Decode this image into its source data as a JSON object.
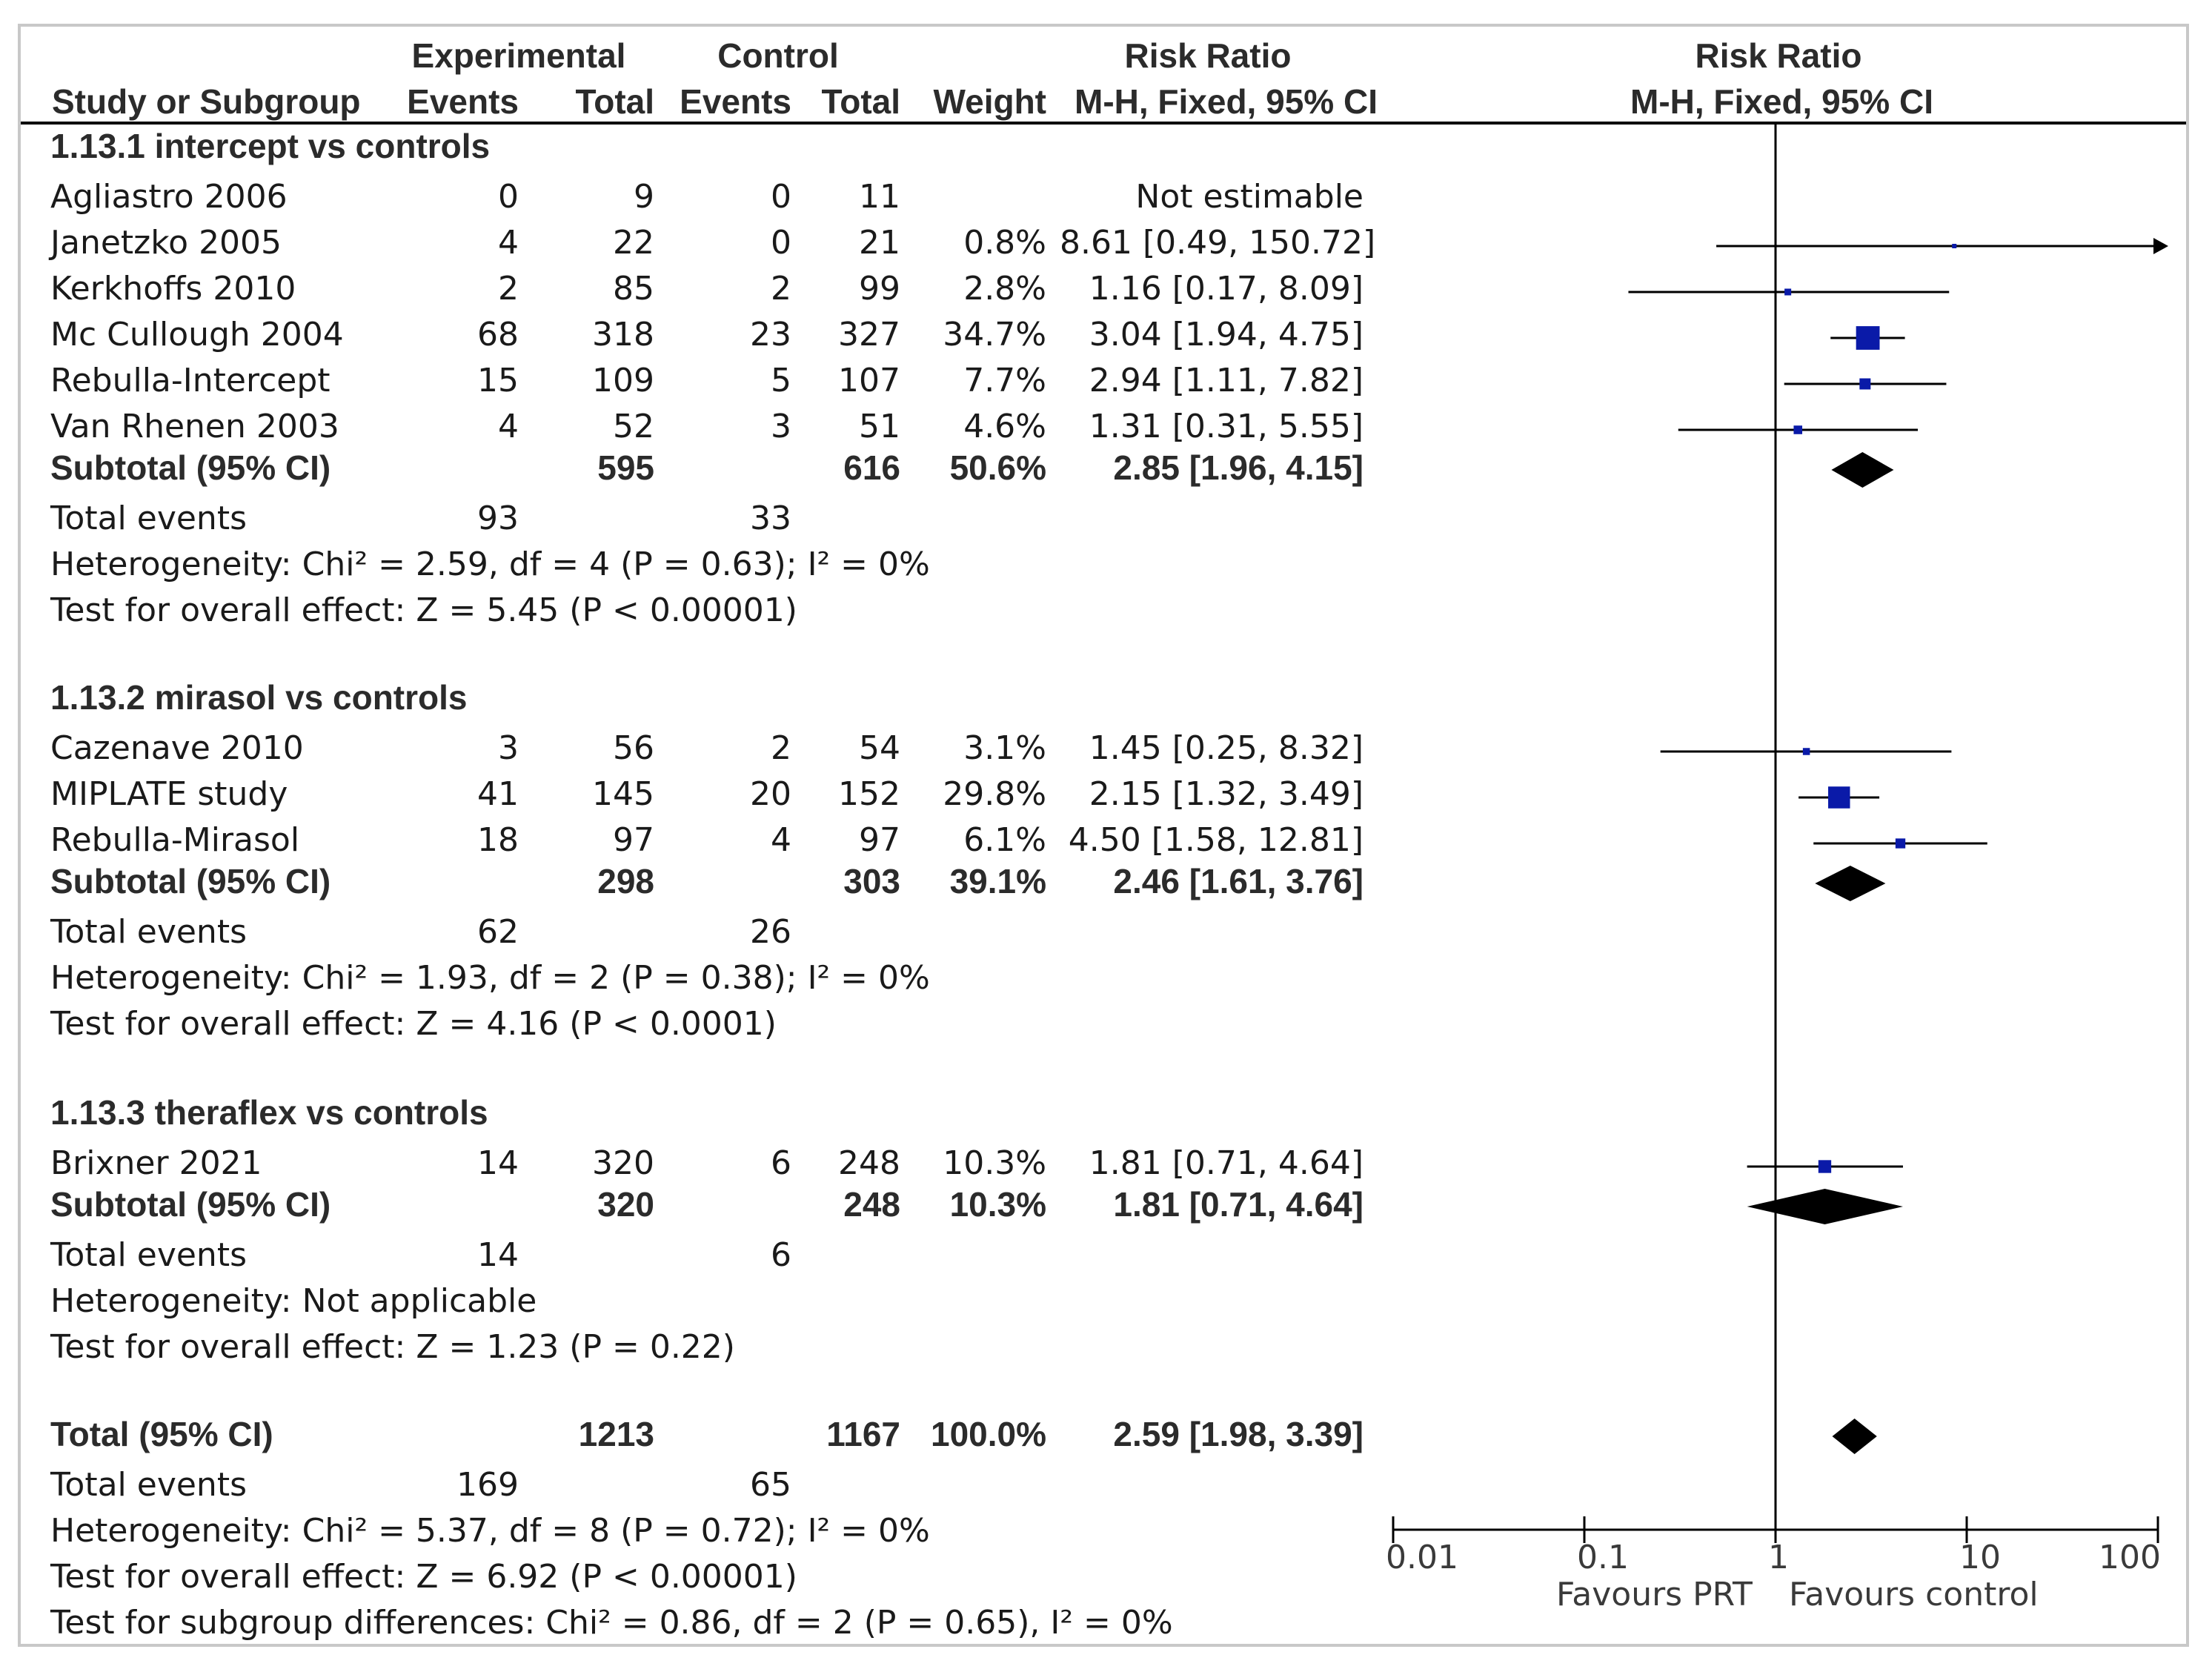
{
  "chart_data": {
    "type": "forest",
    "header": {
      "experimental": "Experimental",
      "control": "Control",
      "risk_ratio": "Risk Ratio",
      "risk_ratio_plot": "Risk Ratio",
      "study": "Study or Subgroup",
      "events": "Events",
      "total": "Total",
      "events2": "Events",
      "total2": "Total",
      "weight": "Weight",
      "method": "M-H, Fixed, 95% CI",
      "method_plot": "M-H, Fixed, 95% CI"
    },
    "subgroups": [
      {
        "title": "1.13.1 intercept vs controls",
        "studies": [
          {
            "name": "Agliastro 2006",
            "e_ev": "0",
            "e_tot": "9",
            "c_ev": "0",
            "c_tot": "11",
            "weight": "",
            "ci": "Not estimable",
            "rr": null,
            "lo": null,
            "hi": null,
            "w": 0
          },
          {
            "name": "Janetzko 2005",
            "e_ev": "4",
            "e_tot": "22",
            "c_ev": "0",
            "c_tot": "21",
            "weight": "0.8%",
            "ci": "8.61 [0.49, 150.72]",
            "rr": 8.61,
            "lo": 0.49,
            "hi": 150.72,
            "w": 0.8
          },
          {
            "name": "Kerkhoffs 2010",
            "e_ev": "2",
            "e_tot": "85",
            "c_ev": "2",
            "c_tot": "99",
            "weight": "2.8%",
            "ci": "1.16 [0.17, 8.09]",
            "rr": 1.16,
            "lo": 0.17,
            "hi": 8.09,
            "w": 2.8
          },
          {
            "name": "Mc Cullough 2004",
            "e_ev": "68",
            "e_tot": "318",
            "c_ev": "23",
            "c_tot": "327",
            "weight": "34.7%",
            "ci": "3.04 [1.94, 4.75]",
            "rr": 3.04,
            "lo": 1.94,
            "hi": 4.75,
            "w": 34.7
          },
          {
            "name": "Rebulla-Intercept",
            "e_ev": "15",
            "e_tot": "109",
            "c_ev": "5",
            "c_tot": "107",
            "weight": "7.7%",
            "ci": "2.94 [1.11, 7.82]",
            "rr": 2.94,
            "lo": 1.11,
            "hi": 7.82,
            "w": 7.7
          },
          {
            "name": "Van Rhenen 2003",
            "e_ev": "4",
            "e_tot": "52",
            "c_ev": "3",
            "c_tot": "51",
            "weight": "4.6%",
            "ci": "1.31 [0.31, 5.55]",
            "rr": 1.31,
            "lo": 0.31,
            "hi": 5.55,
            "w": 4.6
          }
        ],
        "subtotal": {
          "label": "Subtotal (95% CI)",
          "e_tot": "595",
          "c_tot": "616",
          "weight": "50.6%",
          "ci": "2.85 [1.96, 4.15]",
          "rr": 2.85,
          "lo": 1.96,
          "hi": 4.15
        },
        "events_label": "Total events",
        "e_events": "93",
        "c_events": "33",
        "heterogeneity": "Heterogeneity: Chi² = 2.59, df = 4 (P = 0.63); I² = 0%",
        "overall": "Test for overall effect: Z = 5.45 (P < 0.00001)"
      },
      {
        "title": "1.13.2 mirasol vs controls",
        "studies": [
          {
            "name": "Cazenave 2010",
            "e_ev": "3",
            "e_tot": "56",
            "c_ev": "2",
            "c_tot": "54",
            "weight": "3.1%",
            "ci": "1.45 [0.25, 8.32]",
            "rr": 1.45,
            "lo": 0.25,
            "hi": 8.32,
            "w": 3.1
          },
          {
            "name": "MIPLATE study",
            "e_ev": "41",
            "e_tot": "145",
            "c_ev": "20",
            "c_tot": "152",
            "weight": "29.8%",
            "ci": "2.15 [1.32, 3.49]",
            "rr": 2.15,
            "lo": 1.32,
            "hi": 3.49,
            "w": 29.8
          },
          {
            "name": "Rebulla-Mirasol",
            "e_ev": "18",
            "e_tot": "97",
            "c_ev": "4",
            "c_tot": "97",
            "weight": "6.1%",
            "ci": "4.50 [1.58, 12.81]",
            "rr": 4.5,
            "lo": 1.58,
            "hi": 12.81,
            "w": 6.1
          }
        ],
        "subtotal": {
          "label": "Subtotal (95% CI)",
          "e_tot": "298",
          "c_tot": "303",
          "weight": "39.1%",
          "ci": "2.46 [1.61, 3.76]",
          "rr": 2.46,
          "lo": 1.61,
          "hi": 3.76
        },
        "events_label": "Total events",
        "e_events": "62",
        "c_events": "26",
        "heterogeneity": "Heterogeneity: Chi² = 1.93, df = 2 (P = 0.38); I² = 0%",
        "overall": "Test for overall effect: Z = 4.16 (P < 0.0001)"
      },
      {
        "title": "1.13.3 theraflex vs controls",
        "studies": [
          {
            "name": "Brixner 2021",
            "e_ev": "14",
            "e_tot": "320",
            "c_ev": "6",
            "c_tot": "248",
            "weight": "10.3%",
            "ci": "1.81 [0.71, 4.64]",
            "rr": 1.81,
            "lo": 0.71,
            "hi": 4.64,
            "w": 10.3
          }
        ],
        "subtotal": {
          "label": "Subtotal (95% CI)",
          "e_tot": "320",
          "c_tot": "248",
          "weight": "10.3%",
          "ci": "1.81 [0.71, 4.64]",
          "rr": 1.81,
          "lo": 0.71,
          "hi": 4.64
        },
        "events_label": "Total events",
        "e_events": "14",
        "c_events": "6",
        "heterogeneity": "Heterogeneity: Not applicable",
        "overall": "Test for overall effect: Z = 1.23 (P = 0.22)"
      }
    ],
    "total": {
      "label": "Total (95% CI)",
      "e_tot": "1213",
      "c_tot": "1167",
      "weight": "100.0%",
      "ci": "2.59 [1.98, 3.39]",
      "rr": 2.59,
      "lo": 1.98,
      "hi": 3.39,
      "events_label": "Total events",
      "e_events": "169",
      "c_events": "65",
      "heterogeneity": "Heterogeneity: Chi² = 5.37, df = 8 (P = 0.72); I² = 0%",
      "overall": "Test for overall effect: Z = 6.92 (P < 0.00001)",
      "subgroup_diff": "Test for subgroup differences: Chi² = 0.86, df = 2 (P = 0.65), I² = 0%"
    },
    "axis": {
      "scale": "log",
      "range": [
        0.01,
        100
      ],
      "ticks": [
        0.01,
        0.1,
        1,
        10,
        100
      ],
      "tick_labels": [
        "0.01",
        "0.1",
        "1",
        "10",
        "100"
      ],
      "favours_left": "Favours PRT",
      "favours_right": "Favours control"
    },
    "colors": {
      "marker": "#0a1aa8",
      "line": "#000000",
      "diamond": "#000000"
    }
  }
}
